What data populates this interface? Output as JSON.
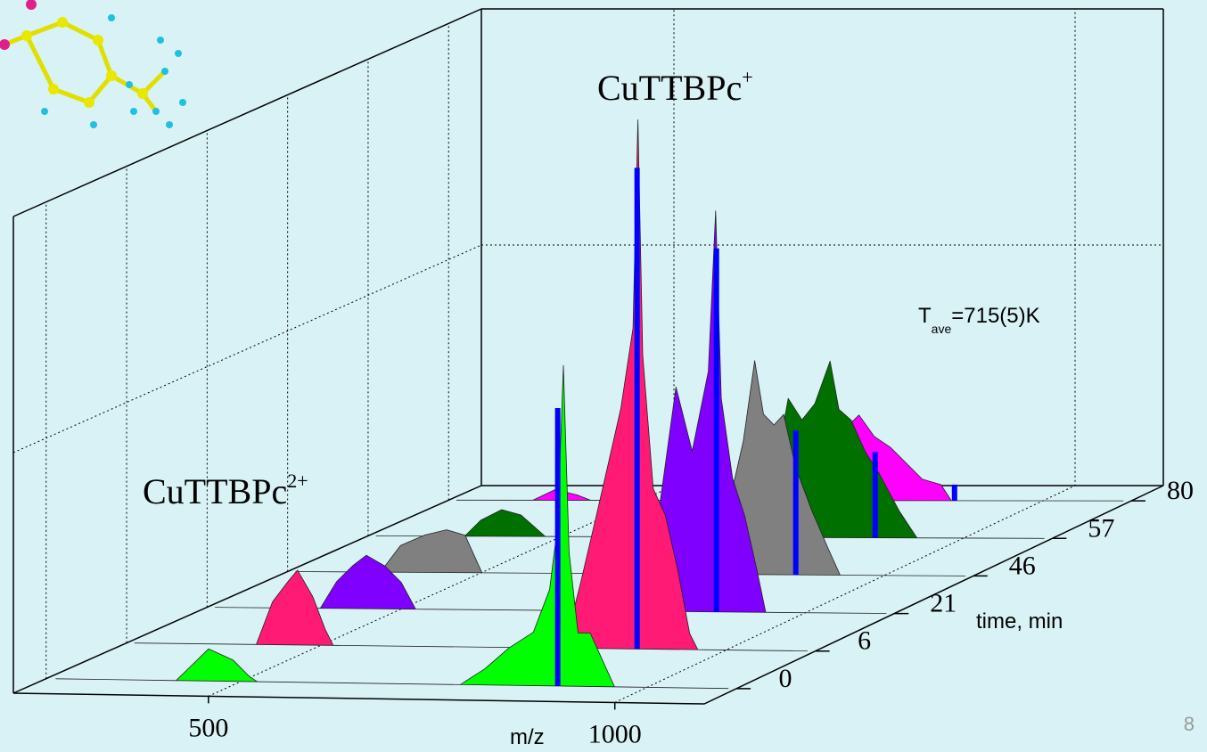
{
  "chart_data": {
    "type": "waterfall",
    "annotations": [
      {
        "text": "CuTTBPc",
        "sup": "+"
      },
      {
        "text": "CuTTBPc",
        "sup": "2+"
      }
    ],
    "note": {
      "main": "T",
      "sub": "ave",
      "rest": "=715(5)K"
    },
    "xlabel": "m/z",
    "zlabel": "time, min",
    "xlim": [
      260,
      1110
    ],
    "xticks": [
      500,
      1000
    ],
    "ylim": [
      0,
      100
    ],
    "grid": true,
    "stick_color": "#0000ff",
    "series": [
      {
        "time": 0,
        "color": "#00ff00",
        "x": [
          272,
          420,
          440,
          460,
          475,
          490,
          510,
          520,
          770,
          800,
          830,
          860,
          880,
          890,
          897,
          904,
          915,
          930,
          945,
          960,
          1100
        ],
        "values": [
          0,
          0,
          3,
          6,
          5,
          4,
          1,
          0,
          0,
          3,
          7,
          10,
          18,
          30,
          60,
          25,
          10,
          10,
          5,
          0,
          0
        ],
        "stick": {
          "x": 890,
          "value": 52
        }
      },
      {
        "time": 6,
        "color": "#ff1a75",
        "x": [
          270,
          420,
          440,
          460,
          471,
          490,
          505,
          515,
          800,
          820,
          840,
          855,
          870,
          885,
          891,
          897,
          910,
          925,
          940,
          955,
          965,
          1100
        ],
        "values": [
          0,
          0,
          8,
          12,
          14,
          9,
          3,
          0,
          0,
          12,
          25,
          35,
          45,
          60,
          99,
          55,
          30,
          25,
          15,
          3,
          0,
          0
        ],
        "stick": {
          "x": 890,
          "value": 90
        }
      },
      {
        "time": 21,
        "color": "#8000ff",
        "x": [
          270,
          400,
          420,
          440,
          457,
          480,
          500,
          518,
          805,
          820,
          840,
          860,
          880,
          889,
          896,
          910,
          925,
          940,
          951,
          1100
        ],
        "values": [
          0,
          0,
          5,
          8,
          10,
          8,
          5,
          0,
          0,
          20,
          42,
          30,
          45,
          75,
          40,
          25,
          18,
          8,
          0,
          0
        ],
        "stick": {
          "x": 890,
          "value": 68
        }
      },
      {
        "time": 46,
        "color": "#808080",
        "x": [
          270,
          375,
          400,
          430,
          457,
          480,
          501,
          795,
          810,
          825,
          839,
          850,
          863,
          875,
          890,
          910,
          930,
          945,
          1100
        ],
        "values": [
          0,
          0,
          5,
          7,
          8,
          7,
          0,
          0,
          15,
          25,
          40,
          30,
          28,
          30,
          20,
          12,
          5,
          0,
          0
        ],
        "stick": {
          "x": 890,
          "value": 27
        }
      },
      {
        "time": 57,
        "color": "#007000",
        "x": [
          270,
          380,
          400,
          426,
          450,
          480,
          750,
          765,
          782,
          799,
          815,
          834,
          845,
          860,
          878,
          895,
          920,
          942,
          1100
        ],
        "values": [
          0,
          0,
          3,
          5,
          4,
          0,
          0,
          12,
          26,
          22,
          25,
          33,
          24,
          22,
          16,
          12,
          5,
          0,
          0
        ],
        "stick": {
          "x": 890,
          "value": 16
        }
      },
      {
        "time": 80,
        "color": "#ff00ff",
        "x": [
          270,
          365,
          393,
          420,
          437,
          700,
          720,
          744,
          771,
          790,
          810,
          830,
          850,
          873,
          886,
          1100
        ],
        "values": [
          0,
          0,
          2,
          1,
          0,
          0,
          8,
          12,
          16,
          12,
          10,
          7,
          4,
          3,
          0,
          0
        ],
        "stick": {
          "x": 890,
          "value": 3
        }
      }
    ]
  },
  "slide_number": "8"
}
